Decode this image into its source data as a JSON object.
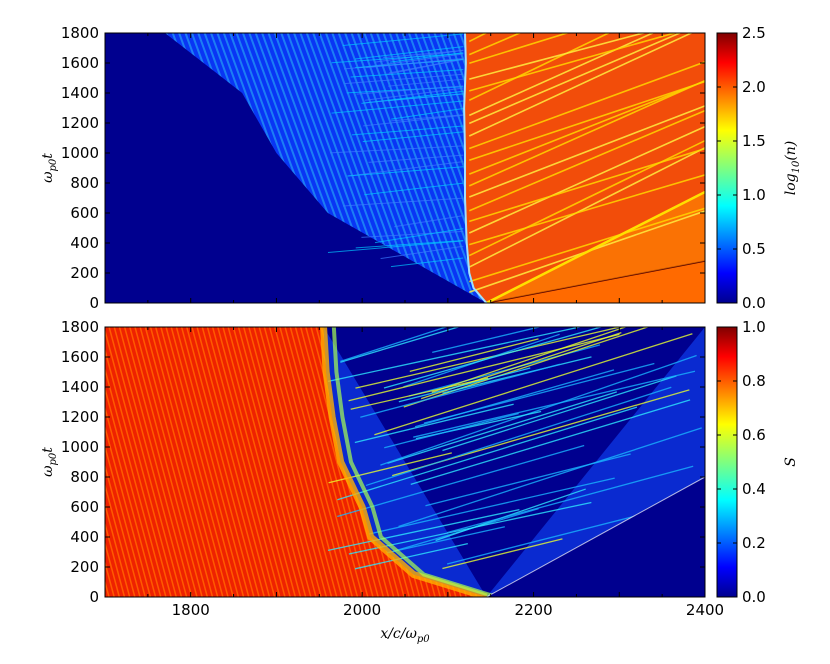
{
  "chart_data": [
    {
      "type": "heatmap",
      "panel": "top",
      "ylabel": "ω_{p0}t",
      "xlim": [
        1700,
        2400
      ],
      "ylim": [
        0,
        1800
      ],
      "y_ticks": [
        0,
        200,
        400,
        600,
        800,
        1000,
        1200,
        1400,
        1600,
        1800
      ],
      "colorbar": {
        "label": "log10(n)",
        "range": [
          0.0,
          2.5
        ],
        "ticks": [
          0.0,
          0.5,
          1.0,
          1.5,
          2.0,
          2.5
        ],
        "colormap": "jet"
      },
      "front_path": [
        {
          "x": 2145,
          "y": 0
        },
        {
          "x": 2130,
          "y": 100
        },
        {
          "x": 2125,
          "y": 200
        },
        {
          "x": 2122,
          "y": 400
        },
        {
          "x": 2120,
          "y": 700
        },
        {
          "x": 2120,
          "y": 1000
        },
        {
          "x": 2119,
          "y": 1300
        },
        {
          "x": 2121,
          "y": 1600
        },
        {
          "x": 2120,
          "y": 1800
        }
      ]
    },
    {
      "type": "heatmap",
      "panel": "bottom",
      "xlabel": "x/c/ω_{p0}",
      "ylabel": "ω_{p0}t",
      "xlim": [
        1700,
        2400
      ],
      "ylim": [
        0,
        1800
      ],
      "x_ticks": [
        1800,
        2000,
        2200,
        2400
      ],
      "y_ticks": [
        0,
        200,
        400,
        600,
        800,
        1000,
        1200,
        1400,
        1600,
        1800
      ],
      "colorbar": {
        "label": "S",
        "range": [
          0.0,
          1.0
        ],
        "ticks": [
          0.0,
          0.2,
          0.4,
          0.6,
          0.8,
          1.0
        ],
        "colormap": "jet"
      },
      "front_path": [
        {
          "x": 2145,
          "y": 0
        },
        {
          "x": 2060,
          "y": 150
        },
        {
          "x": 2010,
          "y": 400
        },
        {
          "x": 2000,
          "y": 600
        },
        {
          "x": 1975,
          "y": 900
        },
        {
          "x": 1965,
          "y": 1200
        },
        {
          "x": 1958,
          "y": 1500
        },
        {
          "x": 1955,
          "y": 1800
        }
      ]
    }
  ],
  "labels": {
    "top_ylabel_main": "ω",
    "top_ylabel_sub": "p0",
    "top_ylabel_tail": "t",
    "bottom_ylabel_main": "ω",
    "bottom_ylabel_sub": "p0",
    "bottom_ylabel_tail": "t",
    "xlabel_main": "x/c/ω",
    "xlabel_sub": "p0",
    "cbar1_label_main": "log",
    "cbar1_label_sub": "10",
    "cbar1_label_tail": "(n)",
    "cbar2_label": "S"
  },
  "colors": {
    "jet_dark_blue": "#00008f",
    "jet_blue": "#0050ff",
    "jet_cyan": "#00ffff",
    "jet_yellow": "#ffff00",
    "jet_orange": "#ff6000",
    "jet_dark_red": "#800000"
  }
}
